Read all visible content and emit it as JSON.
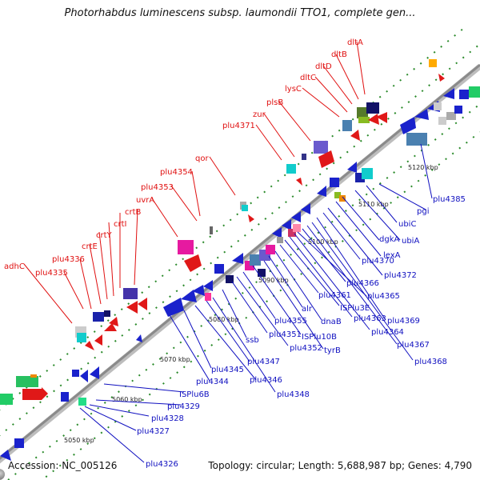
{
  "title": "Photorhabdus luminescens subsp. laumondii TTO1, complete gen...",
  "footer": {
    "accession": "Accession: NC_005126",
    "info": "Topology: circular; Length: 5,688,987 bp; Genes: 4,790"
  },
  "colors": {
    "backbone": "#8a8a8a",
    "red_label": "#e01010",
    "blue_label": "#1010c0",
    "kbp_tick": "#2a7a2a"
  },
  "kbp_labels": [
    {
      "text": "5050 kbp",
      "pos": 0.06
    },
    {
      "text": "5060 kbp",
      "pos": 0.2
    },
    {
      "text": "5070 kbp",
      "pos": 0.335
    },
    {
      "text": "5080 kbp",
      "pos": 0.47
    },
    {
      "text": "5090 kbp",
      "pos": 0.6
    },
    {
      "text": "5100 kbp",
      "pos": 0.725
    },
    {
      "text": "5110 kbp",
      "pos": 0.845
    },
    {
      "text": "5120 kbp",
      "pos": 0.955
    }
  ],
  "red_labels": [
    "adhC",
    "plu4335",
    "plu4336",
    "crtE",
    "crtY",
    "crtI",
    "crtB",
    "uvrA",
    "plu4353",
    "plu4354",
    "qor",
    "plu4371",
    "zur",
    "plsB",
    "lysC",
    "dltC",
    "dltD",
    "dltB",
    "dltA"
  ],
  "blue_labels": [
    "plu4326",
    "plu4327",
    "plu4328",
    "plu4329",
    "ISPlu6B",
    "plu4344",
    "plu4345",
    "plu4346",
    "plu4347",
    "plu4348",
    "ssb",
    "plu4351",
    "plu4352",
    "plu4355",
    "ISPlu10B",
    "tyrB",
    "alr",
    "dnaB",
    "plu4361",
    "ISPlu3E",
    "plu4363",
    "plu4364",
    "plu4365",
    "plu4366",
    "plu4367",
    "plu4368",
    "plu4369",
    "plu4370",
    "plu4372",
    "lexA",
    "dgkA",
    "ubiA",
    "ubiC",
    "pgi",
    "plu4385"
  ]
}
